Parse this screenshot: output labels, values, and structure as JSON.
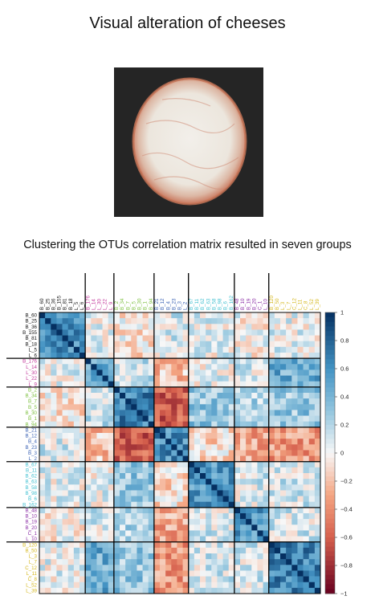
{
  "slide": {
    "title": "Visual alteration of cheeses",
    "subtitle": "Clustering the OTUs correlation matrix resulted in seven groups"
  },
  "photo": {
    "alt": "cheese-photo",
    "rind_color": "#c9785e",
    "background_color": "#252525"
  },
  "chart_data": {
    "type": "heatmap",
    "groups": [
      {
        "color": "#111111",
        "members": [
          "B_60",
          "B_25",
          "B_36",
          "B_155",
          "B_81",
          "B_18",
          "L_5",
          "L_6"
        ]
      },
      {
        "color": "#c2369a",
        "members": [
          "B_176",
          "L_14",
          "L_30",
          "L_22",
          "L_9"
        ]
      },
      {
        "color": "#7bbf3d",
        "members": [
          "B_2",
          "B_34",
          "B_7",
          "B_5",
          "B_30",
          "B_1",
          "B_94"
        ]
      },
      {
        "color": "#3a62b4",
        "members": [
          "B_21",
          "B_12",
          "B_4",
          "B_23",
          "B_3",
          "L_2"
        ]
      },
      {
        "color": "#3ebfd0",
        "members": [
          "B_67",
          "B_11",
          "B_62",
          "B_63",
          "B_58",
          "B_98",
          "B_6",
          "B_162"
        ]
      },
      {
        "color": "#8b2fa6",
        "members": [
          "B_48",
          "B_10",
          "B_19",
          "B_20",
          "C_1",
          "L_10"
        ]
      },
      {
        "color": "#d5b81f",
        "members": [
          "B_120",
          "B_50",
          "L_3",
          "L_7",
          "C_12",
          "L_11",
          "C_8",
          "L_52",
          "L_39"
        ]
      }
    ],
    "colorbar": {
      "ticks": [
        "1",
        "0.8",
        "0.6",
        "0.4",
        "0.2",
        "0",
        "−0.2",
        "−0.4",
        "−0.6",
        "−0.8",
        "−1"
      ],
      "range": [
        -1,
        1
      ]
    },
    "block_correlation": [
      [
        0.6,
        0.05,
        -0.05,
        0.1,
        0.05,
        0.0,
        0.05
      ],
      [
        0.05,
        0.5,
        0.15,
        -0.2,
        0.05,
        0.1,
        0.45
      ],
      [
        -0.05,
        0.15,
        0.65,
        -0.6,
        0.3,
        0.2,
        0.3
      ],
      [
        0.1,
        -0.2,
        -0.6,
        0.6,
        -0.1,
        -0.3,
        -0.35
      ],
      [
        0.05,
        0.05,
        0.3,
        -0.1,
        0.55,
        0.1,
        0.1
      ],
      [
        0.0,
        0.1,
        0.2,
        -0.3,
        0.1,
        0.55,
        0.1
      ],
      [
        0.05,
        0.45,
        0.3,
        -0.35,
        0.1,
        0.1,
        0.65
      ]
    ]
  }
}
